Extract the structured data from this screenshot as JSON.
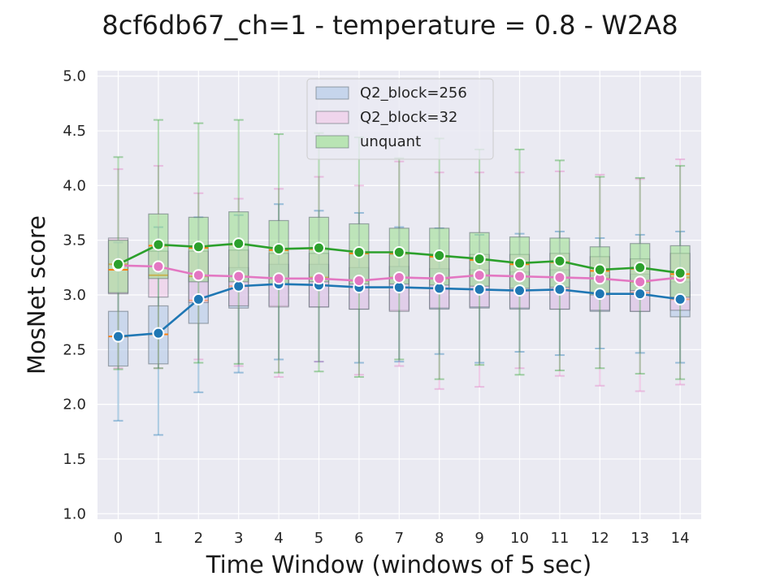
{
  "chart_data": {
    "type": "box",
    "title": "8cf6db67_ch=1 - temperature = 0.8 - W2A8",
    "xlabel": "Time Window (windows of 5 sec)",
    "ylabel": "MosNet score",
    "categories": [
      "0",
      "1",
      "2",
      "3",
      "4",
      "5",
      "6",
      "7",
      "8",
      "9",
      "10",
      "11",
      "12",
      "13",
      "14"
    ],
    "ylim": [
      0.95,
      5.05
    ],
    "yticks": [
      "1.0",
      "1.5",
      "2.0",
      "2.5",
      "3.0",
      "3.5",
      "4.0",
      "4.5",
      "5.0"
    ],
    "grid": true,
    "legend_position": "top-center",
    "series": [
      {
        "name": "Q2_block=256",
        "color": "#1f77b4",
        "box_fill": "#aec7e8",
        "means": [
          2.62,
          2.65,
          2.96,
          3.08,
          3.1,
          3.09,
          3.07,
          3.07,
          3.06,
          3.05,
          3.04,
          3.05,
          3.01,
          3.01,
          2.96
        ],
        "q1": [
          2.35,
          2.37,
          2.74,
          2.88,
          2.9,
          2.89,
          2.87,
          2.86,
          2.87,
          2.88,
          2.87,
          2.87,
          2.85,
          2.85,
          2.8
        ],
        "median": [
          2.62,
          2.64,
          2.95,
          3.08,
          3.1,
          3.09,
          3.07,
          3.07,
          3.06,
          3.05,
          3.04,
          3.05,
          3.02,
          3.02,
          2.96
        ],
        "q3": [
          2.85,
          2.9,
          3.17,
          3.25,
          3.28,
          3.28,
          3.25,
          3.26,
          3.24,
          3.23,
          3.21,
          3.23,
          3.18,
          3.19,
          3.12
        ],
        "whisker_low": [
          1.85,
          1.72,
          2.11,
          2.29,
          2.41,
          2.39,
          2.38,
          2.39,
          2.46,
          2.38,
          2.48,
          2.45,
          2.51,
          2.47,
          2.38
        ],
        "whisker_high": [
          3.48,
          3.62,
          3.71,
          3.73,
          3.83,
          3.77,
          3.75,
          3.62,
          3.61,
          3.55,
          3.56,
          3.58,
          3.52,
          3.55,
          3.58
        ]
      },
      {
        "name": "Q2_block=32",
        "color": "#e377c2",
        "box_fill": "#f2c6e7",
        "means": [
          3.27,
          3.26,
          3.18,
          3.17,
          3.15,
          3.15,
          3.13,
          3.16,
          3.15,
          3.18,
          3.17,
          3.16,
          3.15,
          3.12,
          3.16
        ],
        "q1": [
          3.01,
          2.98,
          2.93,
          2.9,
          2.89,
          2.89,
          2.87,
          2.85,
          2.88,
          2.89,
          2.88,
          2.87,
          2.86,
          2.85,
          2.86
        ],
        "median": [
          3.28,
          3.18,
          3.17,
          3.17,
          3.15,
          3.16,
          3.13,
          3.16,
          3.15,
          3.18,
          3.17,
          3.16,
          3.15,
          3.12,
          3.16
        ],
        "q3": [
          3.52,
          3.4,
          3.4,
          3.41,
          3.38,
          3.38,
          3.38,
          3.37,
          3.36,
          3.37,
          3.37,
          3.38,
          3.35,
          3.33,
          3.38
        ],
        "whisker_low": [
          2.33,
          2.33,
          2.41,
          2.35,
          2.25,
          2.39,
          2.27,
          2.35,
          2.14,
          2.16,
          2.33,
          2.26,
          2.17,
          2.12,
          2.18
        ],
        "whisker_high": [
          4.15,
          4.18,
          3.93,
          3.88,
          3.97,
          4.08,
          4.0,
          4.22,
          4.12,
          4.12,
          4.12,
          4.13,
          4.1,
          4.06,
          4.24
        ]
      },
      {
        "name": "unquant",
        "color": "#2ca02c",
        "box_fill": "#98df8a",
        "means": [
          3.28,
          3.46,
          3.44,
          3.47,
          3.42,
          3.43,
          3.39,
          3.39,
          3.36,
          3.33,
          3.29,
          3.31,
          3.23,
          3.25,
          3.2
        ],
        "q1": [
          3.02,
          3.15,
          3.12,
          3.12,
          3.1,
          3.12,
          3.1,
          3.1,
          3.09,
          3.08,
          3.06,
          3.07,
          3.0,
          3.04,
          2.98
        ],
        "median": [
          3.23,
          3.45,
          3.43,
          3.46,
          3.41,
          3.42,
          3.38,
          3.38,
          3.35,
          3.32,
          3.28,
          3.3,
          3.22,
          3.24,
          3.19
        ],
        "q3": [
          3.5,
          3.74,
          3.71,
          3.76,
          3.68,
          3.71,
          3.65,
          3.61,
          3.61,
          3.57,
          3.53,
          3.52,
          3.44,
          3.47,
          3.45
        ],
        "whisker_low": [
          2.32,
          2.33,
          2.38,
          2.37,
          2.29,
          2.3,
          2.25,
          2.41,
          2.23,
          2.36,
          2.27,
          2.31,
          2.33,
          2.28,
          2.23
        ],
        "whisker_high": [
          4.26,
          4.6,
          4.57,
          4.6,
          4.47,
          4.48,
          4.44,
          4.25,
          4.43,
          4.33,
          4.33,
          4.23,
          4.08,
          4.07,
          4.18
        ]
      }
    ]
  }
}
